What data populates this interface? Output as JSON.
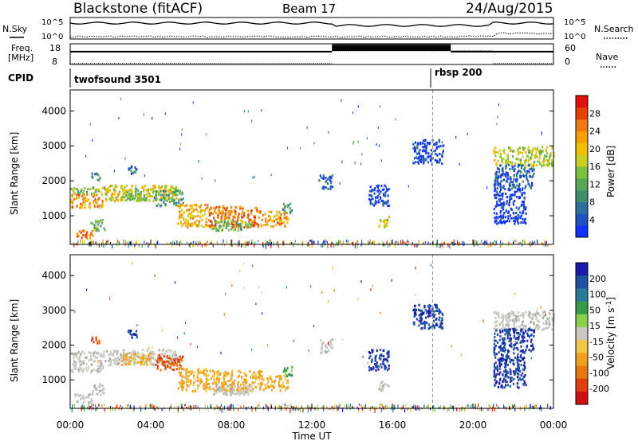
{
  "chart_data": {
    "type": "heatmap",
    "title": {
      "station": "Blackstone (fitACF)",
      "beam": "Beam 17",
      "date": "24/Aug/2015"
    },
    "xlabel": "Time UT",
    "x_ticks": [
      "00:00",
      "04:00",
      "08:00",
      "12:00",
      "16:00",
      "20:00",
      "00:00"
    ],
    "x_range_hours": [
      0,
      24
    ],
    "top_panels": {
      "noise": {
        "left_label": "N.Sky",
        "right_label": "N.Search",
        "left_ticks": [
          "10^5",
          "10^0"
        ],
        "right_ticks": [
          "10^5",
          "10^0"
        ]
      },
      "freq": {
        "left_label": "Freq. [MHz]",
        "left_label_line1": "Freq.",
        "left_label_line2": "[MHz]",
        "right_label": "Nave",
        "left_ticks": [
          "18",
          "8"
        ],
        "right_ticks": [
          "60",
          "0"
        ],
        "freq_steps": [
          [
            0,
            13,
            0.62
          ],
          [
            13,
            18.9,
            0.97
          ],
          [
            18.9,
            21,
            0.62
          ],
          [
            21,
            24,
            0.62
          ]
        ],
        "nave_steps": [
          [
            0,
            13,
            0.05
          ],
          [
            13,
            18,
            0.66
          ],
          [
            18,
            21,
            0.66
          ],
          [
            21,
            24,
            0.05
          ]
        ]
      },
      "cpid": {
        "label": "CPID",
        "modes": [
          {
            "name": "twofsound 3501",
            "start_hour": 0
          },
          {
            "name": "rbsp 200",
            "start_hour": 18
          }
        ]
      }
    },
    "ylabel": "Slant Range [km]",
    "y_ticks": [
      1000,
      2000,
      3000,
      4000
    ],
    "y_range_km": [
      180,
      4600
    ],
    "power": {
      "colorbar_label": "Power [dB]",
      "colorbar_ticks": [
        4,
        8,
        12,
        16,
        20,
        24,
        28
      ],
      "range": [
        0,
        32
      ],
      "colors": [
        "#1030ff",
        "#2050c0",
        "#2f6f9f",
        "#3f8f6f",
        "#59a659",
        "#7fc040",
        "#c8d020",
        "#f0c000",
        "#f5a000",
        "#f07810",
        "#e84000",
        "#e01010"
      ]
    },
    "velocity": {
      "colorbar_label": "Velocity [m s^-1]",
      "colorbar_ticks": [
        200,
        100,
        50,
        15,
        -15,
        -50,
        -100,
        -200
      ],
      "colors": [
        "#1a1aaa",
        "#2050a0",
        "#2a7a9a",
        "#3a9a4a",
        "#8ad04a",
        "#c8c8c0",
        "#f0c848",
        "#f0a020",
        "#e87810",
        "#e04010",
        "#d01010"
      ]
    },
    "regions": [
      {
        "t": [
          0.2,
          1.1
        ],
        "r": [
          380,
          620
        ],
        "p": 28,
        "v": "gray"
      },
      {
        "t": [
          1.0,
          1.7
        ],
        "r": [
          600,
          920
        ],
        "p": 16,
        "v": "gray"
      },
      {
        "t": [
          0,
          1.6
        ],
        "r": [
          1250,
          1650
        ],
        "p": 26,
        "v": "gray"
      },
      {
        "t": [
          0,
          1.8
        ],
        "r": [
          1650,
          1850
        ],
        "p": 18,
        "v": "gray"
      },
      {
        "t": [
          1.0,
          1.5
        ],
        "r": [
          2050,
          2250
        ],
        "p": 14,
        "v": "red"
      },
      {
        "t": [
          1.7,
          5.3
        ],
        "r": [
          1450,
          1900
        ],
        "p": 22,
        "v": "gray"
      },
      {
        "t": [
          2.5,
          4.0
        ],
        "r": [
          1450,
          1800
        ],
        "p": 18,
        "v": "orange"
      },
      {
        "t": [
          4.2,
          5.6
        ],
        "r": [
          1300,
          1750
        ],
        "p": 14,
        "v": "red"
      },
      {
        "t": [
          2.8,
          3.3
        ],
        "r": [
          2200,
          2450
        ],
        "p": 10,
        "v": "blue"
      },
      {
        "t": [
          5.3,
          6.8
        ],
        "r": [
          700,
          1350
        ],
        "p": 24,
        "v": "orange"
      },
      {
        "t": [
          6.8,
          9.5
        ],
        "r": [
          700,
          1300
        ],
        "p": 28,
        "v": "orange"
      },
      {
        "t": [
          9.5,
          10.8
        ],
        "r": [
          720,
          1150
        ],
        "p": 26,
        "v": "orange"
      },
      {
        "t": [
          7.0,
          9.0
        ],
        "r": [
          600,
          900
        ],
        "p": 16,
        "v": "gray"
      },
      {
        "t": [
          10.5,
          11.0
        ],
        "r": [
          1100,
          1400
        ],
        "p": 12,
        "v": "green"
      },
      {
        "t": [
          15.3,
          15.8
        ],
        "r": [
          700,
          1000
        ],
        "p": 20,
        "v": "gray"
      },
      {
        "t": [
          14.8,
          15.8
        ],
        "r": [
          1300,
          1900
        ],
        "p": 6,
        "v": "blue"
      },
      {
        "t": [
          12.3,
          13.0
        ],
        "r": [
          1800,
          2200
        ],
        "p": 8,
        "v": "gray"
      },
      {
        "t": [
          21.0,
          24.0
        ],
        "r": [
          2450,
          3000
        ],
        "p": 20,
        "v": "gray"
      },
      {
        "t": [
          21.0,
          23.0
        ],
        "r": [
          1800,
          2500
        ],
        "p": 8,
        "v": "blue"
      },
      {
        "t": [
          21.0,
          22.6
        ],
        "r": [
          800,
          1800
        ],
        "p": 4,
        "v": "blue"
      },
      {
        "t": [
          17.0,
          18.5
        ],
        "r": [
          2500,
          3200
        ],
        "p": 6,
        "v": "blue"
      }
    ]
  }
}
